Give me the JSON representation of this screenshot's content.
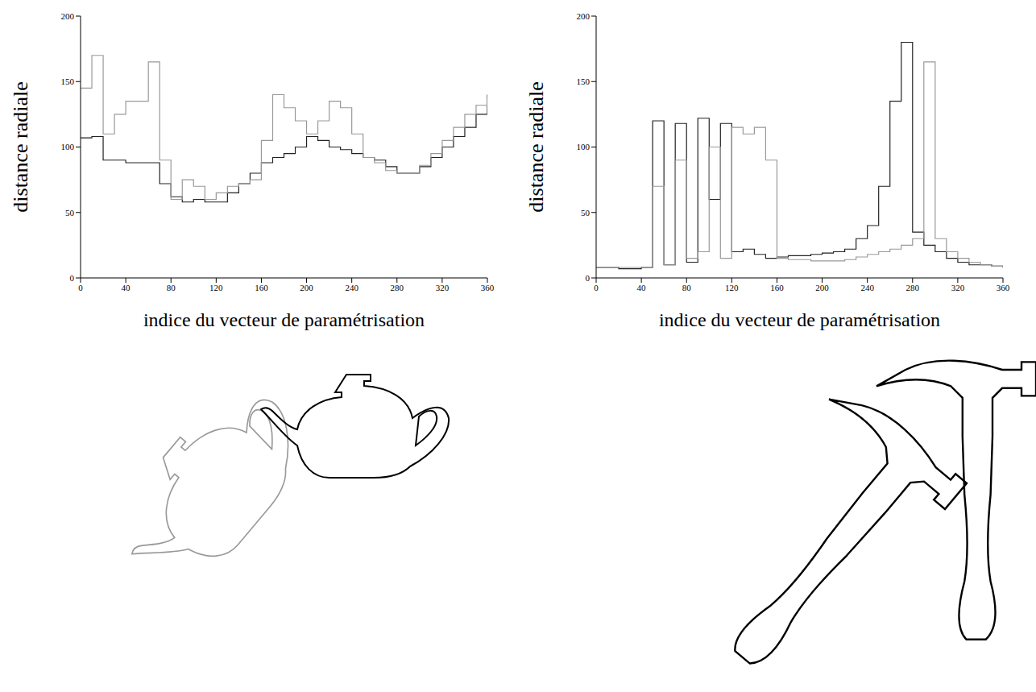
{
  "chart_data": [
    {
      "type": "line",
      "x_label": "indice du vecteur de paramétrisation",
      "y_label": "distance radiale",
      "x": [
        0,
        10,
        20,
        30,
        40,
        50,
        60,
        70,
        80,
        90,
        100,
        110,
        120,
        130,
        140,
        150,
        160,
        170,
        180,
        190,
        200,
        210,
        220,
        230,
        240,
        250,
        260,
        270,
        280,
        290,
        300,
        310,
        320,
        330,
        340,
        350,
        360
      ],
      "xlim": [
        0,
        360
      ],
      "xticks": [
        0,
        40,
        80,
        120,
        160,
        200,
        240,
        280,
        320,
        360
      ],
      "ylim": [
        0,
        200
      ],
      "yticks": [
        0,
        50,
        100,
        150,
        200
      ],
      "grid": false,
      "series": [
        {
          "color": "#222222",
          "line_style": "solid",
          "values": [
            107,
            108,
            90,
            90,
            88,
            88,
            88,
            72,
            62,
            58,
            60,
            58,
            58,
            65,
            72,
            80,
            88,
            92,
            95,
            100,
            108,
            105,
            100,
            98,
            95,
            92,
            90,
            85,
            80,
            80,
            85,
            92,
            100,
            108,
            115,
            125,
            140
          ]
        },
        {
          "color": "#999999",
          "line_style": "solid",
          "values": [
            145,
            170,
            110,
            125,
            135,
            135,
            165,
            90,
            60,
            75,
            70,
            60,
            65,
            70,
            72,
            75,
            105,
            140,
            130,
            120,
            110,
            120,
            135,
            130,
            110,
            92,
            88,
            82,
            80,
            80,
            86,
            95,
            105,
            115,
            125,
            132,
            138
          ]
        }
      ]
    },
    {
      "type": "line",
      "x_label": "indice du vecteur de paramétrisation",
      "y_label": "distance radiale",
      "x": [
        0,
        10,
        20,
        30,
        40,
        50,
        60,
        70,
        80,
        90,
        100,
        110,
        120,
        130,
        140,
        150,
        160,
        170,
        180,
        190,
        200,
        210,
        220,
        230,
        240,
        250,
        260,
        270,
        280,
        290,
        300,
        310,
        320,
        330,
        340,
        350,
        360
      ],
      "xlim": [
        0,
        360
      ],
      "xticks": [
        0,
        40,
        80,
        120,
        160,
        200,
        240,
        280,
        320,
        360
      ],
      "ylim": [
        0,
        200
      ],
      "yticks": [
        0,
        50,
        100,
        150,
        200
      ],
      "grid": false,
      "series": [
        {
          "color": "#222222",
          "line_style": "solid",
          "values": [
            8,
            8,
            7,
            7,
            8,
            120,
            10,
            118,
            12,
            122,
            60,
            118,
            20,
            22,
            18,
            15,
            16,
            17,
            17,
            18,
            19,
            20,
            22,
            30,
            40,
            70,
            135,
            180,
            35,
            25,
            20,
            15,
            12,
            10,
            10,
            9,
            8
          ]
        },
        {
          "color": "#999999",
          "line_style": "solid",
          "values": [
            8,
            8,
            8,
            8,
            8,
            70,
            10,
            90,
            15,
            20,
            100,
            15,
            115,
            110,
            115,
            90,
            15,
            14,
            14,
            13,
            13,
            13,
            14,
            16,
            18,
            20,
            22,
            25,
            30,
            165,
            30,
            20,
            15,
            12,
            10,
            9,
            9
          ]
        }
      ]
    }
  ]
}
